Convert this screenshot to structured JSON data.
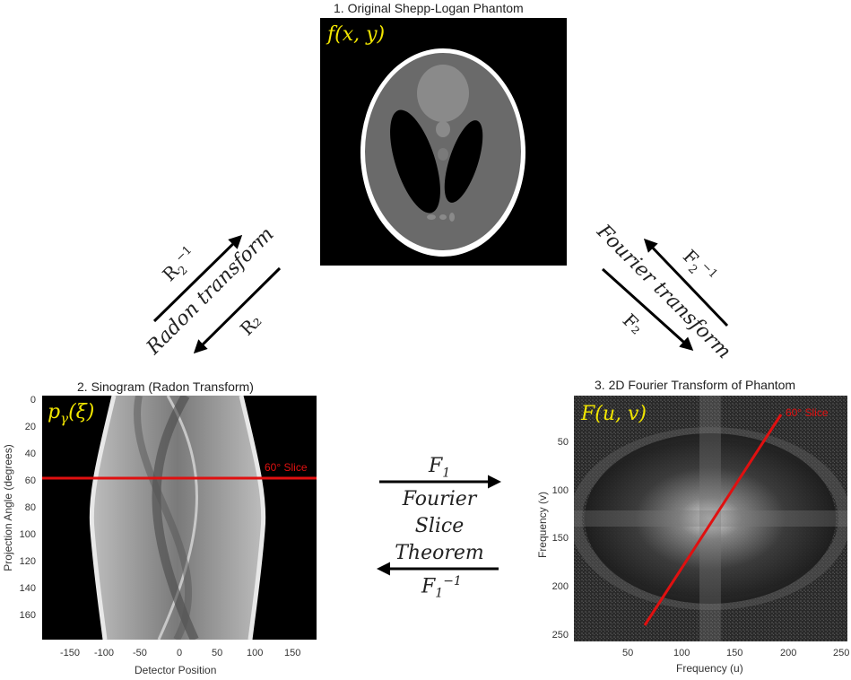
{
  "panels": {
    "phantom": {
      "title": "1. Original Shepp-Logan Phantom",
      "math_label": "f(x, y)"
    },
    "sinogram": {
      "title": "2. Sinogram (Radon Transform)",
      "math_label_base": "p",
      "math_label_sub": "γ",
      "math_label_arg": "(ξ)",
      "slice_label": "60° Slice",
      "xlabel": "Detector Position",
      "ylabel": "Projection Angle (degrees)",
      "xticks": [
        "-150",
        "-100",
        "-50",
        "0",
        "50",
        "100",
        "150"
      ],
      "yticks": [
        "0",
        "20",
        "40",
        "60",
        "80",
        "100",
        "120",
        "140",
        "160"
      ]
    },
    "fourier": {
      "title": "3. 2D Fourier Transform of Phantom",
      "math_label": "F(u, v)",
      "slice_label": "60° Slice",
      "xlabel": "Frequency (u)",
      "ylabel": "Frequency (v)",
      "xticks": [
        "50",
        "100",
        "150",
        "200",
        "250"
      ],
      "yticks": [
        "50",
        "100",
        "150",
        "200",
        "250"
      ]
    }
  },
  "arrows": {
    "radon": {
      "caption": "Radon transform",
      "forward": "R₂",
      "inverse_base": "R",
      "inverse_sub": "2",
      "inverse_sup": "−1"
    },
    "fourier2d": {
      "caption": "Fourier transform",
      "forward": "F₂",
      "inverse_base": "F",
      "inverse_sub": "2",
      "inverse_sup": "−1"
    },
    "slice": {
      "forward_base": "F",
      "forward_sub": "1",
      "caption_lines": [
        "Fourier",
        "Slice",
        "Theorem"
      ],
      "inverse_base": "F",
      "inverse_sub": "1",
      "inverse_sup": "−1"
    }
  },
  "colors": {
    "label_yellow": "#f2e600",
    "slice_red": "#e01010",
    "arrow": "#000000"
  }
}
